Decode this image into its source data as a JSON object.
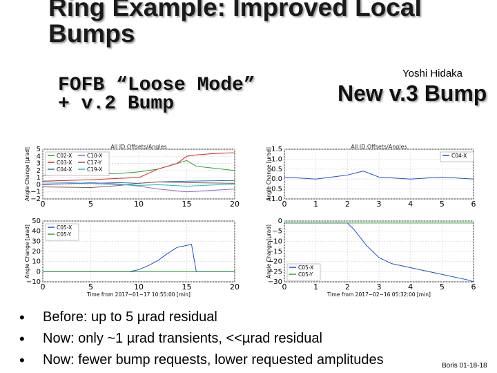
{
  "slide": {
    "title": "Ring Example: Improved Local Bumps",
    "author": "Yoshi Hidaka",
    "left_heading": "FOFB “Loose Mode” + v.2 Bump",
    "right_heading": "New v.3 Bump",
    "bullets": [
      "Before: up to 5 µrad residual",
      "Now: only ~1 µrad transients, <<µrad residual",
      "Now: fewer bump requests, lower requested amplitudes"
    ],
    "footer": "Boris 01-18-18"
  },
  "chart_data": [
    {
      "type": "line",
      "title": "All ID Offsets/Angles",
      "ylabel": "Angle Change [µrad]",
      "xlim": [
        0,
        20
      ],
      "ylim": [
        -2,
        5
      ],
      "xticks": [
        "0",
        "5",
        "10",
        "15",
        "20"
      ],
      "yticks": [
        "5",
        "4",
        "3",
        "2",
        "1",
        "0",
        "−1",
        "−2"
      ],
      "legend": [
        "C02-X",
        "C03-X",
        "C04-X",
        "C10-X",
        "C17-Y",
        "C19-X"
      ],
      "legend_position": "top-left",
      "grid": true,
      "series": [
        {
          "name": "C02-X",
          "color": "#2ca02c",
          "x": [
            0,
            5,
            8,
            10,
            12,
            14,
            15,
            16,
            18,
            20
          ],
          "y": [
            1.3,
            1.5,
            1.6,
            1.8,
            2.2,
            3.0,
            3.4,
            2.6,
            2.3,
            2.0
          ]
        },
        {
          "name": "C03-X",
          "color": "#d62728",
          "x": [
            0,
            5,
            8,
            10,
            12,
            14,
            15,
            16,
            18,
            20
          ],
          "y": [
            0.5,
            0.7,
            0.9,
            1.0,
            2.2,
            3.0,
            4.0,
            4.2,
            4.4,
            4.5
          ]
        },
        {
          "name": "C04-X",
          "color": "#1f77b4",
          "x": [
            0,
            5,
            8,
            10,
            12,
            15,
            20
          ],
          "y": [
            0.1,
            0.2,
            0.3,
            0.2,
            0.4,
            0.5,
            0.6
          ]
        },
        {
          "name": "C10-X",
          "color": "#9467bd",
          "x": [
            0,
            5,
            8,
            10,
            12,
            15,
            20
          ],
          "y": [
            0.0,
            0.3,
            0.1,
            -0.2,
            -0.6,
            -1.0,
            -0.6
          ]
        },
        {
          "name": "C17-Y",
          "color": "#8c564b",
          "x": [
            0,
            5,
            8,
            10,
            12,
            15,
            20
          ],
          "y": [
            -0.3,
            -0.4,
            -0.1,
            0.2,
            0.4,
            0.3,
            0.2
          ]
        },
        {
          "name": "C19-X",
          "color": "#17becf",
          "x": [
            0,
            5,
            8,
            10,
            12,
            15,
            20
          ],
          "y": [
            0.4,
            0.2,
            0.0,
            -0.1,
            0.0,
            -0.2,
            0.1
          ]
        }
      ]
    },
    {
      "type": "line",
      "xlabel": "Time from 2017−01−17 10:55:00 [min]",
      "ylabel": "Angle Change [µrad]",
      "xlim": [
        0,
        20
      ],
      "ylim": [
        -10,
        50
      ],
      "xticks": [
        "0",
        "5",
        "10",
        "15",
        "20"
      ],
      "yticks": [
        "50",
        "40",
        "30",
        "20",
        "10",
        "0",
        "−10"
      ],
      "legend": [
        "C05-X",
        "C05-Y"
      ],
      "legend_position": "top-left",
      "grid": true,
      "series": [
        {
          "name": "C05-X",
          "color": "#1f4fd0",
          "x": [
            0,
            8,
            9,
            10,
            11,
            12,
            13,
            14,
            15,
            15.5,
            16,
            20
          ],
          "y": [
            0,
            0,
            0,
            2,
            6,
            11,
            18,
            24,
            26,
            27,
            0,
            0
          ]
        },
        {
          "name": "C05-Y",
          "color": "#2ca02c",
          "x": [
            0,
            20
          ],
          "y": [
            0,
            0
          ]
        }
      ]
    },
    {
      "type": "line",
      "title": "All ID Offsets/Angles",
      "ylabel": "Angle Change [µrad]",
      "xlim": [
        0,
        6
      ],
      "ylim": [
        -1,
        1.5
      ],
      "xticks": [
        "0",
        "1",
        "2",
        "3",
        "4",
        "5",
        "6"
      ],
      "yticks": [
        "1.5",
        "1.0",
        "0.5",
        "0.0",
        "−0.5",
        "−1.0"
      ],
      "legend": [
        "C04-X"
      ],
      "legend_position": "top-right",
      "grid": true,
      "series": [
        {
          "name": "C04-X",
          "color": "#1f4fd0",
          "x": [
            0,
            1,
            2,
            2.5,
            3,
            4,
            5,
            6
          ],
          "y": [
            0.1,
            0.0,
            0.2,
            0.4,
            0.1,
            0.0,
            0.1,
            0.0
          ]
        }
      ]
    },
    {
      "type": "line",
      "xlabel": "Time from 2017−02−16 05:32:00 [min]",
      "ylabel": "Angle Change [µrad]",
      "xlim": [
        0,
        6
      ],
      "ylim": [
        -30,
        0
      ],
      "xticks": [
        "0",
        "1",
        "2",
        "3",
        "4",
        "5",
        "6"
      ],
      "yticks": [
        "0",
        "−5",
        "−10",
        "−15",
        "−20",
        "−25",
        "−30"
      ],
      "legend": [
        "C05-X",
        "C05-Y"
      ],
      "legend_position": "bottom-left",
      "grid": true,
      "series": [
        {
          "name": "C05-X",
          "color": "#1f4fd0",
          "x": [
            0,
            2.0,
            2.2,
            2.4,
            2.6,
            2.8,
            3.0,
            3.4,
            4.0,
            4.6,
            5.2,
            5.8,
            6
          ],
          "y": [
            -1,
            -1,
            -4,
            -8,
            -12,
            -15,
            -18,
            -21,
            -23,
            -25,
            -27,
            -29,
            -30
          ]
        },
        {
          "name": "C05-Y",
          "color": "#2ca02c",
          "x": [
            0,
            6
          ],
          "y": [
            -1,
            -1
          ]
        }
      ]
    }
  ]
}
